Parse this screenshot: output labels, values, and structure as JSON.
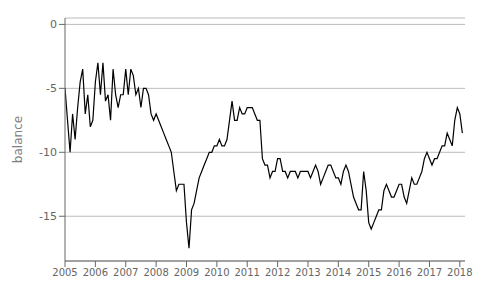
{
  "chart_data": {
    "type": "line",
    "ylabel": "balance",
    "color": "#000000",
    "grid": true,
    "xlim": [
      2005.0,
      2018.17
    ],
    "ylim": [
      -18.5,
      0.5
    ],
    "xticks": [
      2005,
      2006,
      2007,
      2008,
      2009,
      2010,
      2011,
      2012,
      2013,
      2014,
      2015,
      2016,
      2017,
      2018
    ],
    "yticks": [
      0,
      -5,
      -10,
      -15
    ],
    "x": [
      2005.0,
      2005.083,
      2005.167,
      2005.25,
      2005.333,
      2005.417,
      2005.5,
      2005.583,
      2005.667,
      2005.75,
      2005.833,
      2005.917,
      2006.0,
      2006.083,
      2006.167,
      2006.25,
      2006.333,
      2006.417,
      2006.5,
      2006.583,
      2006.667,
      2006.75,
      2006.833,
      2006.917,
      2007.0,
      2007.083,
      2007.167,
      2007.25,
      2007.333,
      2007.417,
      2007.5,
      2007.583,
      2007.667,
      2007.75,
      2007.833,
      2007.917,
      2008.0,
      2008.083,
      2008.167,
      2008.25,
      2008.333,
      2008.417,
      2008.5,
      2008.583,
      2008.667,
      2008.75,
      2008.833,
      2008.917,
      2009.0,
      2009.083,
      2009.167,
      2009.25,
      2009.333,
      2009.417,
      2009.5,
      2009.583,
      2009.667,
      2009.75,
      2009.833,
      2009.917,
      2010.0,
      2010.083,
      2010.167,
      2010.25,
      2010.333,
      2010.417,
      2010.5,
      2010.583,
      2010.667,
      2010.75,
      2010.833,
      2010.917,
      2011.0,
      2011.083,
      2011.167,
      2011.25,
      2011.333,
      2011.417,
      2011.5,
      2011.583,
      2011.667,
      2011.75,
      2011.833,
      2011.917,
      2012.0,
      2012.083,
      2012.167,
      2012.25,
      2012.333,
      2012.417,
      2012.5,
      2012.583,
      2012.667,
      2012.75,
      2012.833,
      2012.917,
      2013.0,
      2013.083,
      2013.167,
      2013.25,
      2013.333,
      2013.417,
      2013.5,
      2013.583,
      2013.667,
      2013.75,
      2013.833,
      2013.917,
      2014.0,
      2014.083,
      2014.167,
      2014.25,
      2014.333,
      2014.417,
      2014.5,
      2014.583,
      2014.667,
      2014.75,
      2014.833,
      2014.917,
      2015.0,
      2015.083,
      2015.167,
      2015.25,
      2015.333,
      2015.417,
      2015.5,
      2015.583,
      2015.667,
      2015.75,
      2015.833,
      2015.917,
      2016.0,
      2016.083,
      2016.167,
      2016.25,
      2016.333,
      2016.417,
      2016.5,
      2016.583,
      2016.667,
      2016.75,
      2016.833,
      2016.917,
      2017.0,
      2017.083,
      2017.167,
      2017.25,
      2017.333,
      2017.417,
      2017.5,
      2017.583,
      2017.667,
      2017.75,
      2017.833,
      2017.917,
      2018.0,
      2018.083
    ],
    "values": [
      -5.0,
      -7.5,
      -10.0,
      -7.0,
      -9.0,
      -6.5,
      -4.5,
      -3.5,
      -7.0,
      -5.5,
      -8.0,
      -7.5,
      -4.5,
      -3.0,
      -5.5,
      -3.0,
      -6.0,
      -5.5,
      -7.5,
      -3.5,
      -5.5,
      -6.5,
      -5.5,
      -5.5,
      -3.5,
      -5.5,
      -3.5,
      -4.0,
      -5.5,
      -5.0,
      -6.5,
      -5.0,
      -5.0,
      -5.5,
      -7.0,
      -7.5,
      -7.0,
      -7.5,
      -8.0,
      -8.5,
      -9.0,
      -9.5,
      -10.0,
      -11.5,
      -13.0,
      -12.5,
      -12.5,
      -12.5,
      -15.5,
      -17.5,
      -14.5,
      -14.0,
      -13.0,
      -12.0,
      -11.5,
      -11.0,
      -10.5,
      -10.0,
      -10.0,
      -9.5,
      -9.5,
      -9.0,
      -9.5,
      -9.5,
      -9.0,
      -7.5,
      -6.0,
      -7.5,
      -7.5,
      -6.5,
      -7.0,
      -7.0,
      -6.5,
      -6.5,
      -6.5,
      -7.0,
      -7.5,
      -7.5,
      -10.5,
      -11.0,
      -11.0,
      -12.0,
      -11.5,
      -11.5,
      -10.5,
      -10.5,
      -11.5,
      -11.5,
      -12.0,
      -11.5,
      -11.5,
      -11.5,
      -12.0,
      -11.5,
      -11.5,
      -11.5,
      -11.5,
      -12.0,
      -11.5,
      -11.0,
      -11.5,
      -12.5,
      -12.0,
      -11.5,
      -11.0,
      -11.0,
      -11.5,
      -12.0,
      -12.0,
      -12.5,
      -11.5,
      -11.0,
      -11.5,
      -12.5,
      -13.5,
      -14.0,
      -14.5,
      -14.5,
      -11.5,
      -13.0,
      -15.5,
      -16.0,
      -15.5,
      -15.0,
      -14.5,
      -14.5,
      -13.0,
      -12.5,
      -13.0,
      -13.5,
      -13.5,
      -13.0,
      -12.5,
      -12.5,
      -13.5,
      -14.0,
      -13.0,
      -12.0,
      -12.5,
      -12.5,
      -12.0,
      -11.5,
      -10.5,
      -10.0,
      -10.5,
      -11.0,
      -10.5,
      -10.5,
      -10.0,
      -9.5,
      -9.5,
      -8.5,
      -9.0,
      -9.5,
      -7.5,
      -6.5,
      -7.0,
      -8.5
    ]
  }
}
